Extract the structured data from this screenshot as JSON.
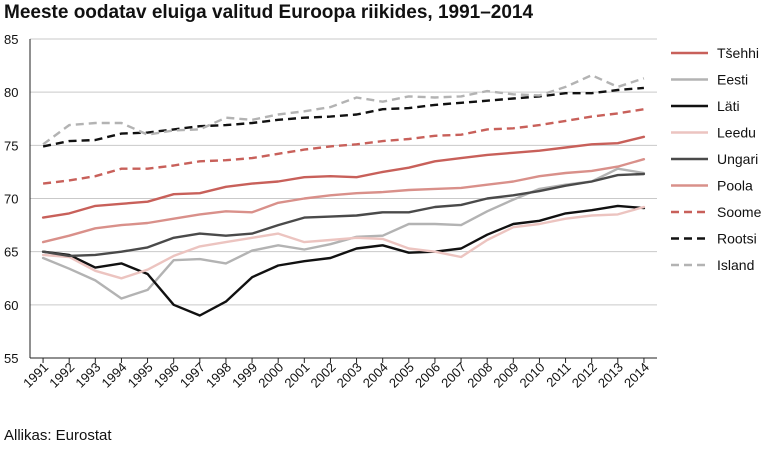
{
  "title": "Meeste oodatav eluiga valitud Euroopa riikides, 1991–2014",
  "source": "Allikas: Eurostat",
  "chart_data": {
    "type": "line",
    "title": "Meeste oodatav eluiga valitud Euroopa riikides, 1991–2014",
    "xlabel": "",
    "ylabel": "",
    "ylim": [
      55,
      85
    ],
    "yticks": [
      55,
      60,
      65,
      70,
      75,
      80,
      85
    ],
    "grid": "horizontal",
    "legend_position": "right",
    "categories": [
      "1991",
      "1992",
      "1993",
      "1994",
      "1995",
      "1996",
      "1997",
      "1998",
      "1999",
      "2000",
      "2001",
      "2002",
      "2003",
      "2004",
      "2005",
      "2006",
      "2007",
      "2008",
      "2009",
      "2010",
      "2011",
      "2012",
      "2013",
      "2014"
    ],
    "series": [
      {
        "name": "Tšehhi",
        "color": "#c8605a",
        "dash": "solid",
        "values": [
          68.2,
          68.6,
          69.3,
          69.5,
          69.7,
          70.4,
          70.5,
          71.1,
          71.4,
          71.6,
          72.0,
          72.1,
          72.0,
          72.5,
          72.9,
          73.5,
          73.8,
          74.1,
          74.3,
          74.5,
          74.8,
          75.1,
          75.2,
          75.8
        ]
      },
      {
        "name": "Eesti",
        "color": "#b3b3b3",
        "dash": "solid",
        "values": [
          64.4,
          63.4,
          62.3,
          60.6,
          61.4,
          64.2,
          64.3,
          63.9,
          65.1,
          65.6,
          65.2,
          65.7,
          66.4,
          66.5,
          67.6,
          67.6,
          67.5,
          68.8,
          69.9,
          70.9,
          71.3,
          71.6,
          72.8,
          72.4
        ]
      },
      {
        "name": "Läti",
        "color": "#111111",
        "dash": "solid",
        "values": [
          65.0,
          64.7,
          63.5,
          63.9,
          62.9,
          60.0,
          59.0,
          60.3,
          62.6,
          63.7,
          64.1,
          64.4,
          65.3,
          65.6,
          64.9,
          65.0,
          65.3,
          66.6,
          67.6,
          67.9,
          68.6,
          68.9,
          69.3,
          69.1
        ]
      },
      {
        "name": "Leedu",
        "color": "#ecc4c0",
        "dash": "solid",
        "values": [
          64.7,
          64.5,
          63.2,
          62.5,
          63.3,
          64.6,
          65.5,
          65.9,
          66.3,
          66.7,
          65.9,
          66.1,
          66.3,
          66.2,
          65.3,
          65.0,
          64.5,
          66.1,
          67.3,
          67.6,
          68.1,
          68.4,
          68.5,
          69.2
        ]
      },
      {
        "name": "Ungari",
        "color": "#4a4a4a",
        "dash": "solid",
        "values": [
          65.0,
          64.6,
          64.7,
          65.0,
          65.4,
          66.3,
          66.7,
          66.5,
          66.7,
          67.5,
          68.2,
          68.3,
          68.4,
          68.7,
          68.7,
          69.2,
          69.4,
          70.0,
          70.3,
          70.7,
          71.2,
          71.6,
          72.2,
          72.3
        ]
      },
      {
        "name": "Poola",
        "color": "#d9908a",
        "dash": "solid",
        "values": [
          65.9,
          66.5,
          67.2,
          67.5,
          67.7,
          68.1,
          68.5,
          68.8,
          68.7,
          69.6,
          70.0,
          70.3,
          70.5,
          70.6,
          70.8,
          70.9,
          71.0,
          71.3,
          71.6,
          72.1,
          72.4,
          72.6,
          73.0,
          73.7
        ]
      },
      {
        "name": "Soome",
        "color": "#c8605a",
        "dash": "dash",
        "values": [
          71.4,
          71.7,
          72.1,
          72.8,
          72.8,
          73.1,
          73.5,
          73.6,
          73.8,
          74.2,
          74.6,
          74.9,
          75.1,
          75.4,
          75.6,
          75.9,
          76.0,
          76.5,
          76.6,
          76.9,
          77.3,
          77.7,
          78.0,
          78.4
        ]
      },
      {
        "name": "Rootsi",
        "color": "#111111",
        "dash": "dash",
        "values": [
          74.9,
          75.4,
          75.5,
          76.1,
          76.2,
          76.5,
          76.8,
          76.9,
          77.1,
          77.4,
          77.6,
          77.7,
          77.9,
          78.4,
          78.5,
          78.8,
          79.0,
          79.2,
          79.4,
          79.6,
          79.9,
          79.9,
          80.2,
          80.4
        ]
      },
      {
        "name": "Island",
        "color": "#b3b3b3",
        "dash": "dash",
        "values": [
          75.1,
          76.9,
          77.1,
          77.1,
          76.0,
          76.4,
          76.5,
          77.6,
          77.4,
          77.9,
          78.2,
          78.6,
          79.5,
          79.1,
          79.6,
          79.5,
          79.6,
          80.1,
          79.8,
          79.7,
          80.5,
          81.6,
          80.5,
          81.3
        ]
      }
    ]
  }
}
